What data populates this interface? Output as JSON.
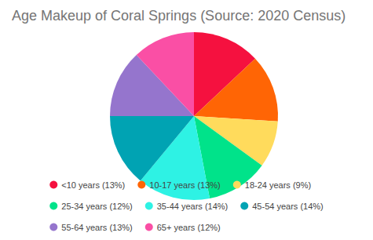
{
  "chart_data": {
    "type": "pie",
    "title": "Age Makeup of Coral Springs (Source: 2020 Census)",
    "categories": [
      "<10 years (13%)",
      "10-17 years (13%)",
      "18-24 years (9%)",
      "25-34 years (12%)",
      "35-44 years (14%)",
      "45-54 years (14%)",
      "55-64 years (13%)",
      "65+ years (12%)"
    ],
    "values": [
      13,
      13,
      9,
      12,
      14,
      14,
      13,
      12
    ],
    "colors": [
      "#f5113f",
      "#ff6505",
      "#ffdb5c",
      "#00e38a",
      "#2ef2e4",
      "#00a3b3",
      "#9575cd",
      "#fa4fa5"
    ],
    "legend": "bottom"
  }
}
